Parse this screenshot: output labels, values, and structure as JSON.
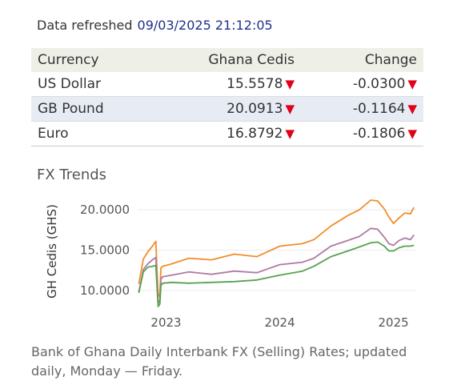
{
  "header": {
    "refresh_label": "Data refreshed",
    "refresh_timestamp": "09/03/2025 21:12:05"
  },
  "table": {
    "columns": [
      "Currency",
      "Ghana Cedis",
      "Change"
    ],
    "rows": [
      {
        "currency": "US Dollar",
        "cedis": "15.5578",
        "change": "-0.0300",
        "direction": "down"
      },
      {
        "currency": "GB Pound",
        "cedis": "20.0913",
        "change": "-0.1164",
        "direction": "down"
      },
      {
        "currency": "Euro",
        "cedis": "16.8792",
        "change": "-0.1806",
        "direction": "down"
      }
    ],
    "down_indicator": "▼",
    "down_color": "#e0001a"
  },
  "trends": {
    "title": "FX Trends"
  },
  "chart_data": {
    "type": "line",
    "title": "",
    "ylabel": "GH Cedis (GHS)",
    "xlabel": "",
    "ylim": [
      8.5,
      21.5
    ],
    "xlim": [
      2022.75,
      2025.2
    ],
    "yticks": [
      10,
      15,
      20
    ],
    "ytick_labels": [
      "10.0000",
      "15.0000",
      "20.0000"
    ],
    "xticks": [
      2023,
      2024,
      2025
    ],
    "xtick_labels": [
      "2023",
      "2024",
      "2025"
    ],
    "grid": "horizontal",
    "legend": "none",
    "series": [
      {
        "color": "#f28e2b",
        "x": [
          2022.76,
          2022.8,
          2022.84,
          2022.88,
          2022.91,
          2022.93,
          2022.945,
          2022.955,
          2022.97,
          2023.05,
          2023.2,
          2023.4,
          2023.6,
          2023.8,
          2024.0,
          2024.2,
          2024.3,
          2024.45,
          2024.6,
          2024.7,
          2024.8,
          2024.86,
          2024.92,
          2024.96,
          2025.0,
          2025.05,
          2025.1,
          2025.15,
          2025.18
        ],
        "y": [
          10.8,
          13.9,
          14.8,
          15.5,
          16.1,
          9.2,
          9.6,
          12.8,
          13.0,
          13.3,
          14.0,
          13.8,
          14.5,
          14.2,
          15.5,
          15.8,
          16.3,
          18.0,
          19.3,
          20.0,
          21.2,
          21.1,
          20.1,
          19.1,
          18.3,
          19.0,
          19.6,
          19.5,
          20.3
        ]
      },
      {
        "color": "#b07aa1",
        "x": [
          2022.76,
          2022.8,
          2022.84,
          2022.88,
          2022.91,
          2022.93,
          2022.945,
          2022.955,
          2022.97,
          2023.05,
          2023.2,
          2023.4,
          2023.6,
          2023.8,
          2024.0,
          2024.2,
          2024.3,
          2024.45,
          2024.6,
          2024.7,
          2024.8,
          2024.86,
          2024.92,
          2024.96,
          2025.0,
          2025.05,
          2025.1,
          2025.15,
          2025.18
        ],
        "y": [
          9.8,
          12.6,
          13.3,
          13.8,
          14.1,
          8.4,
          8.8,
          11.4,
          11.7,
          11.9,
          12.3,
          12.0,
          12.4,
          12.2,
          13.2,
          13.5,
          14.0,
          15.5,
          16.2,
          16.7,
          17.7,
          17.6,
          16.6,
          15.8,
          15.6,
          16.2,
          16.5,
          16.3,
          16.9
        ]
      },
      {
        "color": "#59a14f",
        "x": [
          2022.76,
          2022.8,
          2022.84,
          2022.88,
          2022.91,
          2022.93,
          2022.945,
          2022.955,
          2022.97,
          2023.05,
          2023.2,
          2023.4,
          2023.6,
          2023.8,
          2024.0,
          2024.2,
          2024.3,
          2024.45,
          2024.6,
          2024.7,
          2024.8,
          2024.86,
          2024.92,
          2024.96,
          2025.0,
          2025.05,
          2025.1,
          2025.15,
          2025.18
        ],
        "y": [
          9.7,
          12.3,
          12.9,
          13.0,
          13.1,
          8.0,
          8.3,
          10.6,
          10.9,
          11.0,
          10.9,
          11.0,
          11.1,
          11.3,
          11.9,
          12.4,
          13.0,
          14.2,
          14.9,
          15.4,
          15.9,
          16.0,
          15.5,
          14.9,
          14.9,
          15.3,
          15.5,
          15.5,
          15.6
        ]
      }
    ]
  },
  "footnote": {
    "text": "Bank of Ghana Daily Interbank FX (Selling) Rates; updated daily, Monday — Friday."
  }
}
